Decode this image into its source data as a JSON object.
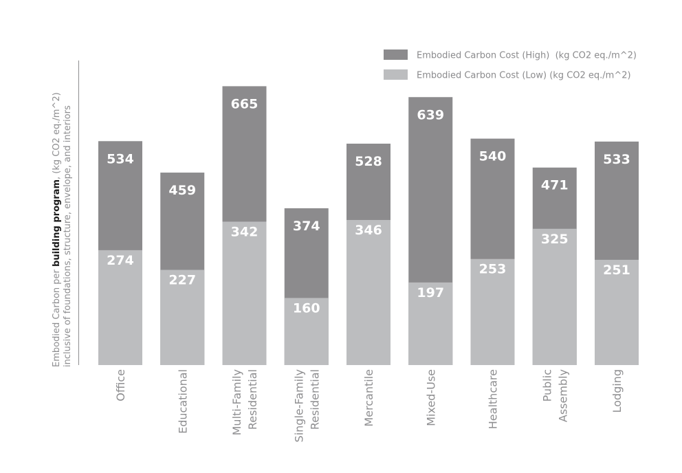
{
  "chart_data": {
    "type": "bar",
    "stacked_overlay": true,
    "categories": [
      "Office",
      "Educational",
      "Multi-Family Residential",
      "Single-Family Residential",
      "Mercantile",
      "Mixed-Use",
      "Healthcare",
      "Public Assembly",
      "Lodging"
    ],
    "category_lines": [
      [
        "Office"
      ],
      [
        "Educational"
      ],
      [
        "Multi-Family",
        "Residential"
      ],
      [
        "Single-Family",
        "Residential"
      ],
      [
        "Mercantile"
      ],
      [
        "Mixed-Use"
      ],
      [
        "Healthcare"
      ],
      [
        "Public",
        "Assembly"
      ],
      [
        "Lodging"
      ]
    ],
    "series": [
      {
        "name": "Embodied Carbon Cost (High)  (kg CO2 eq./m^2)",
        "color": "#8c8b8d",
        "values": [
          534,
          459,
          665,
          374,
          528,
          639,
          540,
          471,
          533
        ]
      },
      {
        "name": "Embodied Carbon Cost (Low) (kg CO2 eq./m^2)",
        "color": "#bcbdbf",
        "values": [
          274,
          227,
          342,
          160,
          346,
          197,
          253,
          325,
          251
        ]
      }
    ],
    "ylabel": {
      "line1_pre": "Embodied Carbon per ",
      "line1_bold": "building program",
      "line1_post": ", (kg CO2 eq./m^2)",
      "line2": "inclusive of foundations, structure, envelope, and interiors"
    },
    "ylim": [
      0,
      690
    ],
    "legend_position": "top-right",
    "grid": false
  }
}
